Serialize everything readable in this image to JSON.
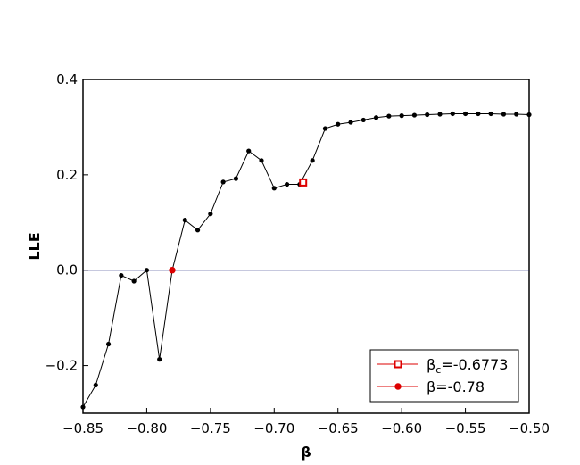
{
  "chart_data": {
    "type": "line",
    "title": "",
    "xlabel": "β",
    "ylabel": "LLE",
    "xlim": [
      -0.85,
      -0.5
    ],
    "ylim": [
      -0.3,
      0.4
    ],
    "xticks": [
      -0.85,
      -0.8,
      -0.75,
      -0.7,
      -0.65,
      -0.6,
      -0.55,
      -0.5
    ],
    "xtick_labels": [
      "−0.85",
      "−0.80",
      "−0.75",
      "−0.70",
      "−0.65",
      "−0.60",
      "−0.55",
      "−0.50"
    ],
    "yticks": [
      -0.2,
      0.0,
      0.2,
      0.4
    ],
    "ytick_labels": [
      "−0.2",
      "0.0",
      "0.2",
      "0.4"
    ],
    "grid": false,
    "legend_position": "bottom-right",
    "zero_line": {
      "y": 0,
      "color": "#1a237e"
    },
    "series": [
      {
        "color": "#000000",
        "x": [
          -0.85,
          -0.84,
          -0.83,
          -0.82,
          -0.81,
          -0.8,
          -0.79,
          -0.78,
          -0.77,
          -0.76,
          -0.75,
          -0.74,
          -0.73,
          -0.72,
          -0.71,
          -0.7,
          -0.69,
          -0.68,
          -0.67,
          -0.66,
          -0.65,
          -0.64,
          -0.63,
          -0.62,
          -0.61,
          -0.6,
          -0.59,
          -0.58,
          -0.57,
          -0.56,
          -0.55,
          -0.54,
          -0.53,
          -0.52,
          -0.51,
          -0.5
        ],
        "y": [
          -0.287,
          -0.241,
          -0.155,
          -0.011,
          -0.023,
          0.0,
          -0.187,
          0.0,
          0.105,
          0.084,
          0.118,
          0.185,
          0.192,
          0.25,
          0.23,
          0.172,
          0.18,
          0.18,
          0.23,
          0.297,
          0.306,
          0.31,
          0.315,
          0.32,
          0.323,
          0.324,
          0.325,
          0.326,
          0.327,
          0.328,
          0.328,
          0.328,
          0.328,
          0.327,
          0.327,
          0.326
        ]
      }
    ],
    "markers": [
      {
        "name": "βc=-0.6773",
        "label_main": "β",
        "label_sub": "c",
        "label_rest": "=-0.6773",
        "x": -0.6773,
        "y": 0.184,
        "color": "#dd0000",
        "shape": "hollow-square"
      },
      {
        "name": "β=-0.78",
        "label_main": "β",
        "label_sub": "",
        "label_rest": "=-0.78",
        "x": -0.78,
        "y": 0.0,
        "color": "#dd0000",
        "shape": "star"
      }
    ]
  }
}
